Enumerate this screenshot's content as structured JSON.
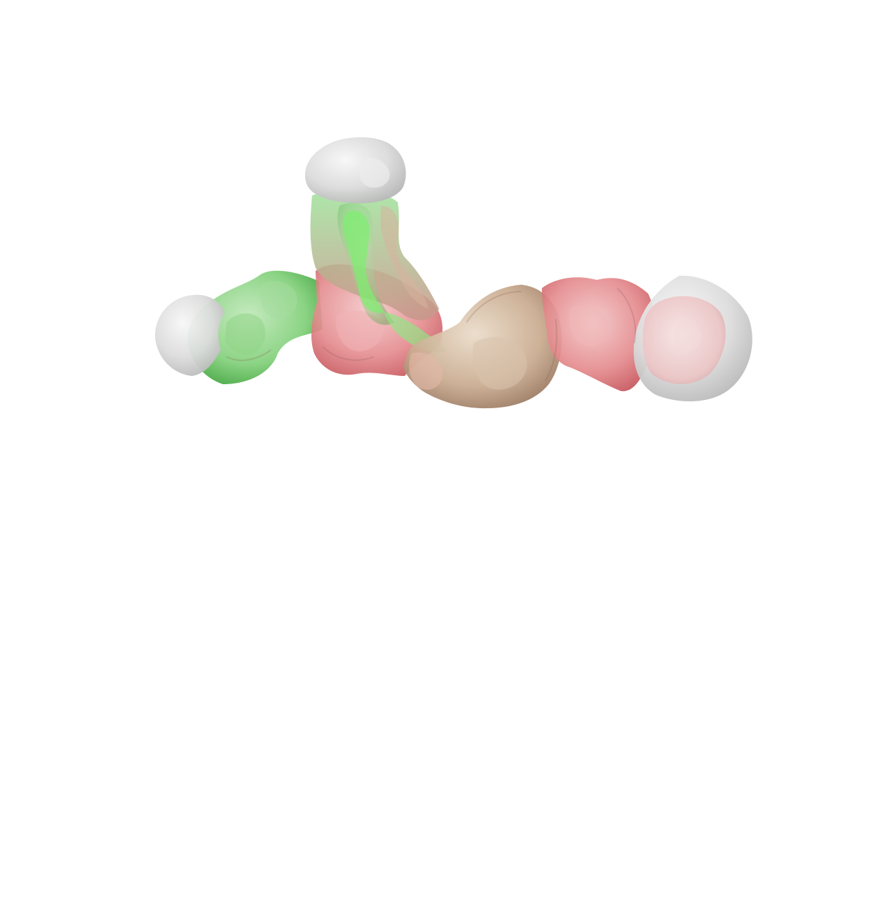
{
  "scene": {
    "background_color": "#ffffff",
    "colors": {
      "cap": "#d6d6d6",
      "green": "#5fc45a",
      "bright_green": "#7cf06e",
      "red": "#e07a7e",
      "tan": "#c4a68a",
      "pink": "#ecc2c4"
    }
  }
}
